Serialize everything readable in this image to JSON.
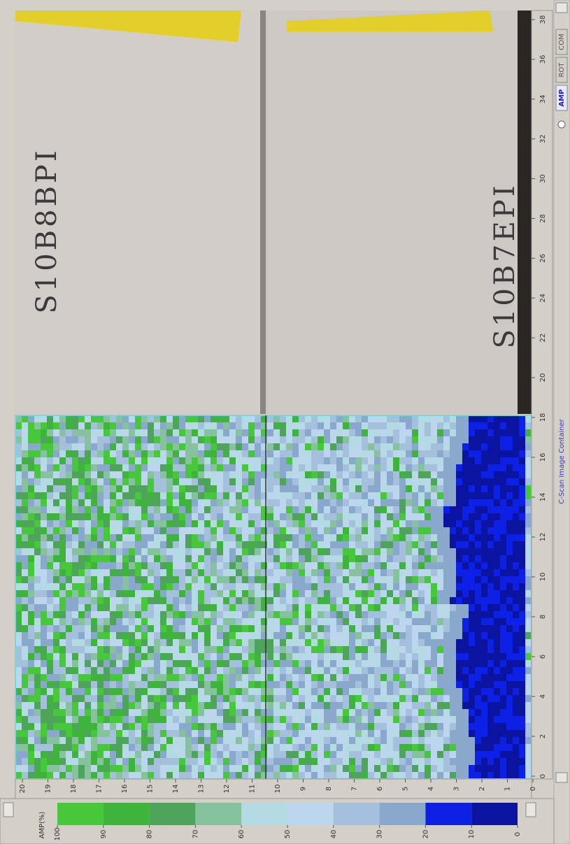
{
  "container_title": "C-Scan Image Container",
  "tabs": [
    "AMP",
    "ROT",
    "COM"
  ],
  "photo": {
    "labels": [
      "S10B8BPI",
      "S10B7EPI"
    ],
    "y_ticks": [
      38,
      36,
      34,
      32,
      30,
      28,
      26,
      24,
      22,
      20
    ]
  },
  "scan": {
    "y_ticks": [
      18,
      16,
      14,
      12,
      10,
      8,
      6,
      4,
      2,
      0
    ],
    "x_ticks": [
      20,
      19,
      18,
      17,
      16,
      15,
      14,
      13,
      12,
      11,
      10,
      9,
      8,
      7,
      6,
      5,
      4,
      3,
      2,
      1,
      0
    ]
  },
  "legend": {
    "title": "AMP(%)",
    "ticks": [
      100,
      90,
      80,
      70,
      60,
      50,
      40,
      30,
      20,
      10,
      0
    ],
    "colors": [
      "#46c83a",
      "#3fb43c",
      "#4fa45c",
      "#86c29e",
      "#b4dbe4",
      "#bcd6ee",
      "#a4c0dc",
      "#8aa8cc",
      "#0c20e6",
      "#0a14a0"
    ]
  }
}
